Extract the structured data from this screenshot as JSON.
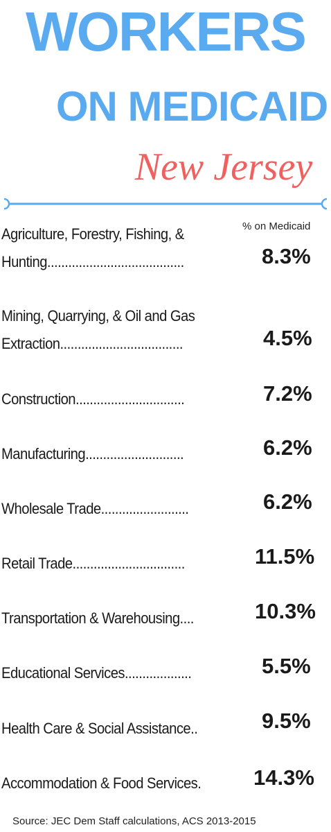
{
  "title": {
    "line1": "WORKERS",
    "line2": "ON MEDICAID",
    "line3": "New Jersey"
  },
  "column_header": "% on Medicaid",
  "rows": [
    {
      "label_line1": "Agriculture, Forestry, Fishing, &",
      "label_line2": "Hunting.......................................",
      "value": "8.3%"
    },
    {
      "label_line1": "Mining, Quarrying, & Oil and Gas",
      "label_line2": "Extraction...................................",
      "value": "4.5%"
    },
    {
      "label_line1": "",
      "label_line2": "Construction...............................",
      "value": "7.2%"
    },
    {
      "label_line1": "",
      "label_line2": "Manufacturing............................",
      "value": "6.2%"
    },
    {
      "label_line1": "",
      "label_line2": "Wholesale Trade.........................",
      "value": "6.2%"
    },
    {
      "label_line1": "",
      "label_line2": "Retail Trade................................",
      "value": "11.5%"
    },
    {
      "label_line1": "",
      "label_line2": "Transportation & Warehousing....",
      "value": "10.3%"
    },
    {
      "label_line1": "",
      "label_line2": "Educational Services...................",
      "value": "5.5%"
    },
    {
      "label_line1": "",
      "label_line2": "Health Care & Social Assistance..",
      "value": "9.5%"
    },
    {
      "label_line1": "",
      "label_line2": "Accommodation & Food Services.",
      "value": "14.3%"
    }
  ],
  "source": "Source: JEC Dem Staff calculations, ACS 2013-2015",
  "colors": {
    "title_blue": "#5aaaf0",
    "title_red": "#f0605e",
    "divider_blue": "#5aaaf0",
    "text": "#1a1a1a"
  }
}
